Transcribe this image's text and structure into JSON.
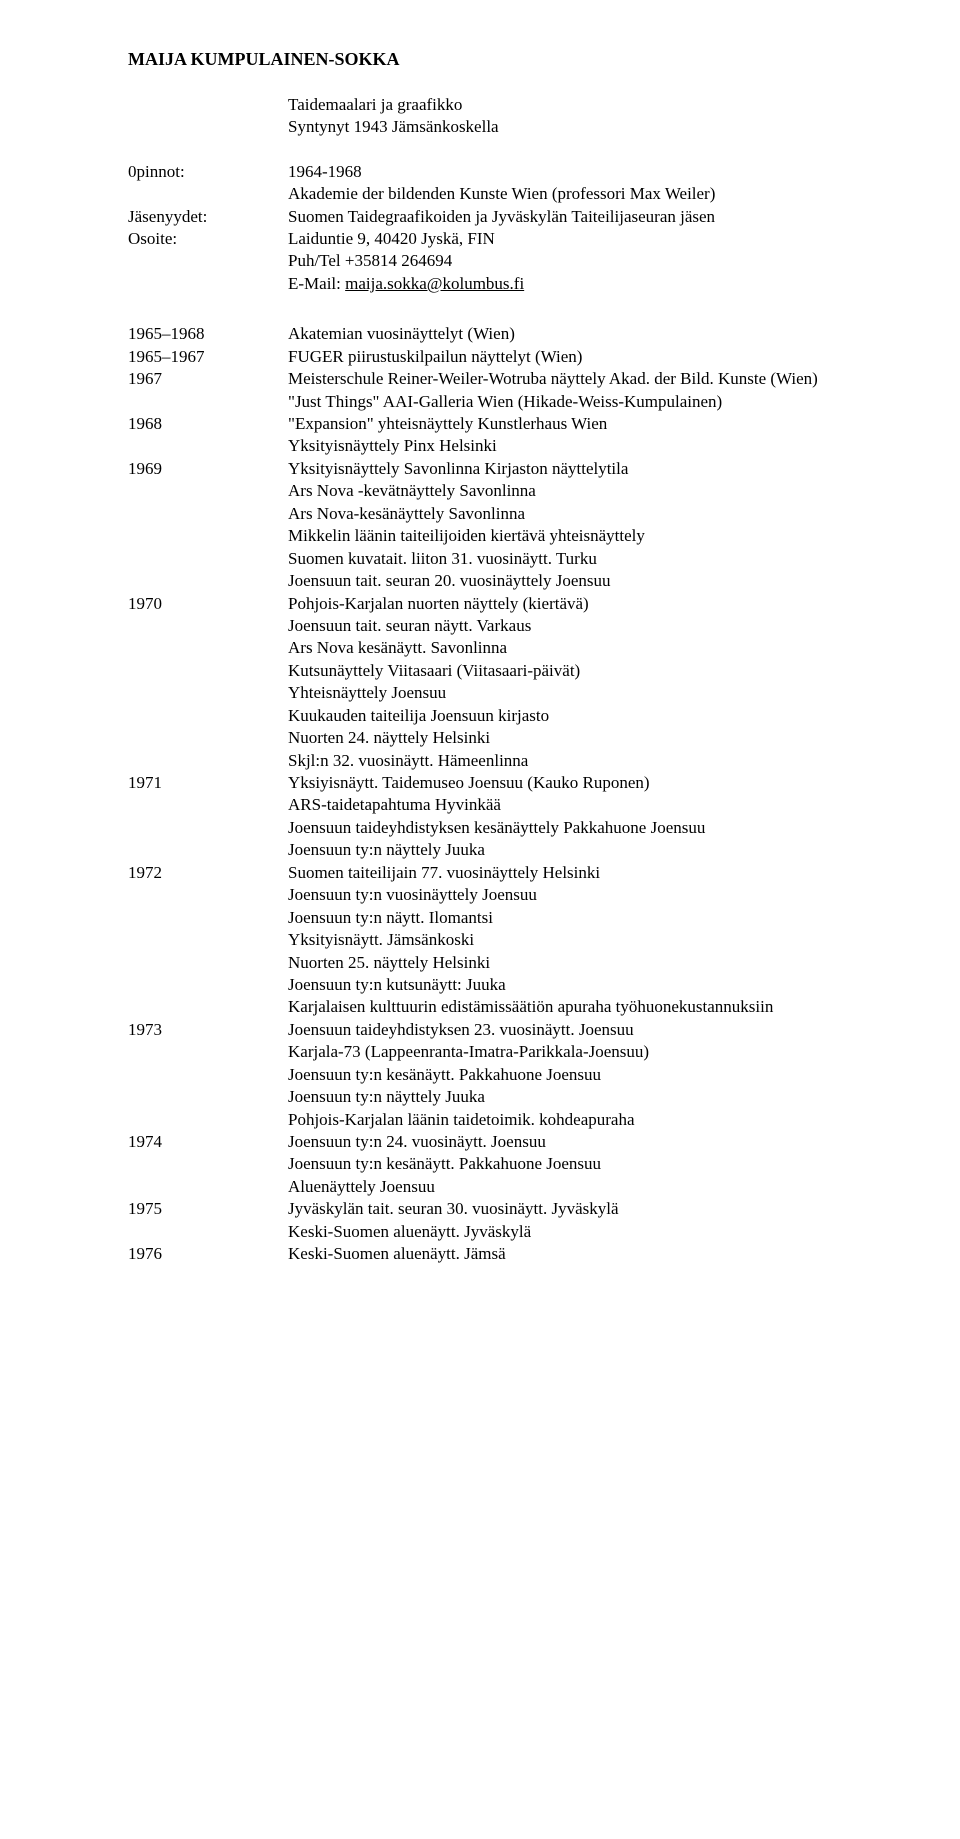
{
  "title": "MAIJA KUMPULAINEN-SOKKA",
  "subtitle_lines": [
    "Taidemaalari ja graafikko",
    " Syntynyt 1943 Jämsänkoskella"
  ],
  "meta": [
    {
      "label": "0pinnot:",
      "lines": [
        "1964-1968",
        "Akademie der bildenden Kunste Wien (professori Max Weiler)"
      ]
    },
    {
      "label": "Jäsenyydet:",
      "lines": [
        "Suomen Taidegraafikoiden ja Jyväskylän Taiteilijaseuran jäsen"
      ]
    },
    {
      "label": "Osoite:",
      "lines": [
        "Laiduntie 9, 40420 Jyskä, FIN",
        "Puh/Tel +35814 264694"
      ],
      "mail_prefix": "E-Mail: ",
      "mail": "maija.sokka@kolumbus.fi"
    }
  ],
  "cv": [
    {
      "year": "1965–1968",
      "lines": [
        "Akatemian vuosinäyttelyt (Wien)"
      ]
    },
    {
      "year": "1965–1967",
      "lines": [
        "FUGER piirustuskilpailun näyttelyt (Wien)"
      ]
    },
    {
      "year": "1967",
      "lines": [
        " Meisterschule Reiner-Weiler-Wotruba näyttely Akad. der Bild. Kunste (Wien)",
        "\"Just Things\" AAI-Galleria Wien  (Hikade-Weiss-Kumpulainen)"
      ]
    },
    {
      "year": "1968",
      "lines": [
        "\"Expansion\" yhteisnäyttely Kunstlerhaus Wien",
        "Yksityisnäyttely Pinx Helsinki"
      ]
    },
    {
      "year": "1969",
      "lines": [
        "Yksityisnäyttely Savonlinna Kirjaston näyttelytila",
        "Ars Nova -kevätnäyttely Savonlinna",
        "Ars Nova-kesänäyttely Savonlinna",
        "Mikkelin läänin taiteilijoiden kiertävä yhteisnäyttely",
        "Suomen kuvatait. liiton 31. vuosinäytt. Turku",
        "Joensuun tait. seuran 20. vuosinäyttely Joensuu"
      ]
    },
    {
      "year": "1970",
      "lines": [
        "Pohjois-Karjalan nuorten näyttely (kiertävä)",
        "Joensuun tait. seuran näytt. Varkaus",
        "Ars Nova kesänäytt. Savonlinna",
        "Kutsunäyttely Viitasaari (Viitasaari-päivät)",
        "Yhteisnäyttely Joensuu",
        "Kuukauden taiteilija Joensuun kirjasto",
        "Nuorten 24. näyttely Helsinki",
        "Skjl:n 32. vuosinäytt. Hämeenlinna"
      ]
    },
    {
      "year": "1971",
      "lines": [
        "Yksiyisnäytt. Taidemuseo Joensuu (Kauko Ruponen)",
        "ARS-taidetapahtuma Hyvinkää",
        "Joensuun taideyhdistyksen kesänäyttely Pakkahuone Joensuu",
        "Joensuun ty:n näyttely Juuka"
      ]
    },
    {
      "year": "1972",
      "lines": [
        "Suomen taiteilijain 77. vuosinäyttely Helsinki",
        "Joensuun ty:n vuosinäyttely Joensuu",
        "Joensuun ty:n näytt. Ilomantsi",
        "Yksityisnäytt. Jämsänkoski",
        "Nuorten 25. näyttely Helsinki",
        "Joensuun ty:n kutsunäytt: Juuka",
        "Karjalaisen kulttuurin edistämissäätiön apuraha työhuonekustannuksiin"
      ]
    },
    {
      "year": "1973",
      "lines": [
        "Joensuun taideyhdistyksen 23. vuosinäytt. Joensuu",
        "Karjala-73 (Lappeenranta-Imatra-Parikkala-Joensuu)",
        "Joensuun ty:n kesänäytt. Pakkahuone Joensuu",
        "Joensuun ty:n näyttely Juuka",
        "Pohjois-Karjalan läänin taidetoimik. kohdeapuraha"
      ]
    },
    {
      "year": "1974",
      "lines": [
        "Joensuun ty:n 24. vuosinäytt. Joensuu",
        "Joensuun ty:n kesänäytt. Pakkahuone Joensuu",
        "Aluenäyttely Joensuu"
      ]
    },
    {
      "year": "1975",
      "lines": [
        "Jyväskylän tait. seuran 30. vuosinäytt. Jyväskylä",
        "Keski-Suomen aluenäytt. Jyväskylä"
      ]
    },
    {
      "year": "1976",
      "lines": [
        "Keski-Suomen aluenäytt. Jämsä"
      ]
    }
  ]
}
